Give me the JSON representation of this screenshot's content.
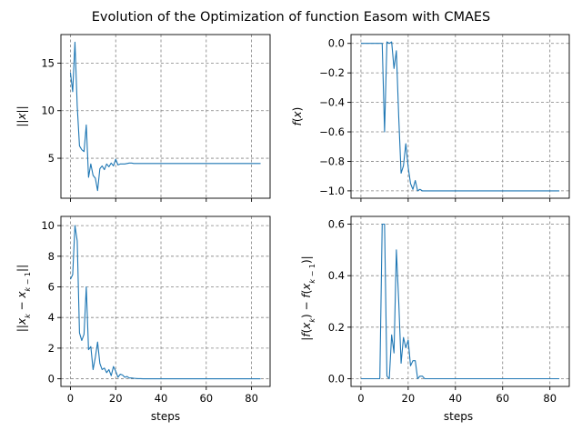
{
  "figure": {
    "title": "Evolution of the Optimization of function Easom with CMAES"
  },
  "colors": {
    "line": "#1f77b4",
    "grid": "#808080",
    "axis": "#000000"
  },
  "chart_data": [
    {
      "type": "line",
      "ylabel": "||x||",
      "xlabel": "",
      "xlim": [
        -4.2,
        88.2
      ],
      "ylim": [
        0.8,
        18.0
      ],
      "xticks": [
        0,
        20,
        40,
        60,
        80
      ],
      "yticks": [
        5,
        10,
        15
      ],
      "grid": true,
      "x_tick_labels_shown": false,
      "x": [
        0,
        1,
        2,
        3,
        4,
        5,
        6,
        7,
        8,
        9,
        10,
        11,
        12,
        13,
        14,
        15,
        16,
        17,
        18,
        19,
        20,
        21,
        22,
        23,
        24,
        25,
        26,
        27,
        28,
        29,
        30,
        31,
        32,
        33,
        34,
        35,
        36,
        37,
        38,
        39,
        40,
        41,
        42,
        43,
        44,
        45,
        46,
        47,
        48,
        49,
        50,
        51,
        52,
        53,
        54,
        55,
        56,
        57,
        58,
        59,
        60,
        61,
        62,
        63,
        64,
        65,
        66,
        67,
        68,
        69,
        70,
        71,
        72,
        73,
        74,
        75,
        76,
        77,
        78,
        79,
        80,
        81,
        82,
        83,
        84
      ],
      "values": [
        14.0,
        12.0,
        17.2,
        10.5,
        6.3,
        5.9,
        5.7,
        8.5,
        3.0,
        4.4,
        3.2,
        2.9,
        1.6,
        3.9,
        4.2,
        3.8,
        4.4,
        4.1,
        4.5,
        4.2,
        4.9,
        4.3,
        4.4,
        4.4,
        4.4,
        4.45,
        4.5,
        4.5,
        4.45,
        4.45,
        4.45,
        4.45,
        4.45,
        4.45,
        4.45,
        4.45,
        4.45,
        4.45,
        4.45,
        4.45,
        4.45,
        4.45,
        4.45,
        4.45,
        4.45,
        4.45,
        4.45,
        4.45,
        4.45,
        4.45,
        4.45,
        4.45,
        4.45,
        4.45,
        4.45,
        4.45,
        4.45,
        4.45,
        4.45,
        4.45,
        4.45,
        4.45,
        4.45,
        4.45,
        4.45,
        4.45,
        4.45,
        4.45,
        4.45,
        4.45,
        4.45,
        4.45,
        4.45,
        4.45,
        4.45,
        4.45,
        4.45,
        4.45,
        4.45,
        4.45,
        4.45,
        4.45,
        4.45,
        4.45,
        4.45
      ]
    },
    {
      "type": "line",
      "ylabel": "f(x)",
      "xlabel": "",
      "xlim": [
        -4.2,
        88.2
      ],
      "ylim": [
        -1.05,
        0.06
      ],
      "xticks": [
        0,
        20,
        40,
        60,
        80
      ],
      "yticks": [
        0.0,
        -0.2,
        -0.4,
        -0.6,
        -0.8,
        -1.0
      ],
      "ytick_labels": [
        "0.0",
        "−0.2",
        "−0.4",
        "−0.6",
        "−0.8",
        "−1.0"
      ],
      "grid": true,
      "x_tick_labels_shown": false,
      "x": [
        0,
        1,
        2,
        3,
        4,
        5,
        6,
        7,
        8,
        9,
        10,
        11,
        12,
        13,
        14,
        15,
        16,
        17,
        18,
        19,
        20,
        21,
        22,
        23,
        24,
        25,
        26,
        27,
        28,
        29,
        30,
        31,
        32,
        33,
        34,
        35,
        36,
        37,
        38,
        39,
        40,
        41,
        42,
        43,
        44,
        45,
        46,
        47,
        48,
        49,
        50,
        51,
        52,
        53,
        54,
        55,
        56,
        57,
        58,
        59,
        60,
        61,
        62,
        63,
        64,
        65,
        66,
        67,
        68,
        69,
        70,
        71,
        72,
        73,
        74,
        75,
        76,
        77,
        78,
        79,
        80,
        81,
        82,
        83,
        84
      ],
      "values": [
        0.0,
        0.0,
        0.0,
        0.0,
        0.0,
        0.0,
        0.0,
        0.0,
        0.0,
        0.0,
        -0.6,
        0.01,
        0.0,
        0.01,
        -0.17,
        -0.05,
        -0.5,
        -0.88,
        -0.83,
        -0.68,
        -0.84,
        -0.95,
        -0.99,
        -0.93,
        -1.0,
        -0.99,
        -1.0,
        -1.0,
        -1.0,
        -1.0,
        -1.0,
        -1.0,
        -1.0,
        -1.0,
        -1.0,
        -1.0,
        -1.0,
        -1.0,
        -1.0,
        -1.0,
        -1.0,
        -1.0,
        -1.0,
        -1.0,
        -1.0,
        -1.0,
        -1.0,
        -1.0,
        -1.0,
        -1.0,
        -1.0,
        -1.0,
        -1.0,
        -1.0,
        -1.0,
        -1.0,
        -1.0,
        -1.0,
        -1.0,
        -1.0,
        -1.0,
        -1.0,
        -1.0,
        -1.0,
        -1.0,
        -1.0,
        -1.0,
        -1.0,
        -1.0,
        -1.0,
        -1.0,
        -1.0,
        -1.0,
        -1.0,
        -1.0,
        -1.0,
        -1.0,
        -1.0,
        -1.0,
        -1.0,
        -1.0,
        -1.0,
        -1.0,
        -1.0,
        -1.0
      ]
    },
    {
      "type": "line",
      "ylabel": "||x_k − x_{k−1}||",
      "xlabel": "steps",
      "xlim": [
        -4.2,
        88.2
      ],
      "ylim": [
        -0.5,
        10.6
      ],
      "xticks": [
        0,
        20,
        40,
        60,
        80
      ],
      "yticks": [
        0,
        2,
        4,
        6,
        8,
        10
      ],
      "grid": true,
      "x_tick_labels_shown": true,
      "x": [
        0,
        1,
        2,
        3,
        4,
        5,
        6,
        7,
        8,
        9,
        10,
        11,
        12,
        13,
        14,
        15,
        16,
        17,
        18,
        19,
        20,
        21,
        22,
        23,
        24,
        25,
        26,
        27,
        28,
        29,
        30,
        31,
        32,
        33,
        34,
        35,
        36,
        37,
        38,
        39,
        40,
        41,
        42,
        43,
        44,
        45,
        46,
        47,
        48,
        49,
        50,
        51,
        52,
        53,
        54,
        55,
        56,
        57,
        58,
        59,
        60,
        61,
        62,
        63,
        64,
        65,
        66,
        67,
        68,
        69,
        70,
        71,
        72,
        73,
        74,
        75,
        76,
        77,
        78,
        79,
        80,
        81,
        82,
        83,
        84
      ],
      "values": [
        6.5,
        6.8,
        10.0,
        9.0,
        3.0,
        2.5,
        2.9,
        6.0,
        1.9,
        2.1,
        0.6,
        1.4,
        2.4,
        1.0,
        0.6,
        0.7,
        0.4,
        0.6,
        0.2,
        0.8,
        0.5,
        0.1,
        0.3,
        0.25,
        0.1,
        0.15,
        0.05,
        0.05,
        0.03,
        0.02,
        0.01,
        0.01,
        0.0,
        0.0,
        0.0,
        0.0,
        0.0,
        0.0,
        0.0,
        0.0,
        0.0,
        0.0,
        0.0,
        0.0,
        0.0,
        0.0,
        0.0,
        0.0,
        0.0,
        0.0,
        0.0,
        0.0,
        0.0,
        0.0,
        0.0,
        0.0,
        0.0,
        0.0,
        0.0,
        0.0,
        0.0,
        0.0,
        0.0,
        0.0,
        0.0,
        0.0,
        0.0,
        0.0,
        0.0,
        0.0,
        0.0,
        0.0,
        0.0,
        0.0,
        0.0,
        0.0,
        0.0,
        0.0,
        0.0,
        0.0,
        0.0,
        0.0,
        0.0,
        0.0,
        0.0
      ]
    },
    {
      "type": "line",
      "ylabel": "|f(x_k) − f(x_{k−1})|",
      "xlabel": "steps",
      "xlim": [
        -4.2,
        88.2
      ],
      "ylim": [
        -0.03,
        0.63
      ],
      "xticks": [
        0,
        20,
        40,
        60,
        80
      ],
      "yticks": [
        0.0,
        0.2,
        0.4,
        0.6
      ],
      "ytick_labels": [
        "0.0",
        "0.2",
        "0.4",
        "0.6"
      ],
      "grid": true,
      "x_tick_labels_shown": true,
      "x": [
        0,
        1,
        2,
        3,
        4,
        5,
        6,
        7,
        8,
        9,
        10,
        11,
        12,
        13,
        14,
        15,
        16,
        17,
        18,
        19,
        20,
        21,
        22,
        23,
        24,
        25,
        26,
        27,
        28,
        29,
        30,
        31,
        32,
        33,
        34,
        35,
        36,
        37,
        38,
        39,
        40,
        41,
        42,
        43,
        44,
        45,
        46,
        47,
        48,
        49,
        50,
        51,
        52,
        53,
        54,
        55,
        56,
        57,
        58,
        59,
        60,
        61,
        62,
        63,
        64,
        65,
        66,
        67,
        68,
        69,
        70,
        71,
        72,
        73,
        74,
        75,
        76,
        77,
        78,
        79,
        80,
        81,
        82,
        83,
        84
      ],
      "values": [
        0.0,
        0.0,
        0.0,
        0.0,
        0.0,
        0.0,
        0.0,
        0.0,
        0.0,
        0.6,
        0.6,
        0.01,
        0.0,
        0.17,
        0.1,
        0.5,
        0.3,
        0.06,
        0.16,
        0.12,
        0.15,
        0.05,
        0.07,
        0.07,
        0.0,
        0.01,
        0.01,
        0.0,
        0.0,
        0.0,
        0.0,
        0.0,
        0.0,
        0.0,
        0.0,
        0.0,
        0.0,
        0.0,
        0.0,
        0.0,
        0.0,
        0.0,
        0.0,
        0.0,
        0.0,
        0.0,
        0.0,
        0.0,
        0.0,
        0.0,
        0.0,
        0.0,
        0.0,
        0.0,
        0.0,
        0.0,
        0.0,
        0.0,
        0.0,
        0.0,
        0.0,
        0.0,
        0.0,
        0.0,
        0.0,
        0.0,
        0.0,
        0.0,
        0.0,
        0.0,
        0.0,
        0.0,
        0.0,
        0.0,
        0.0,
        0.0,
        0.0,
        0.0,
        0.0,
        0.0,
        0.0,
        0.0,
        0.0,
        0.0,
        0.0
      ]
    }
  ]
}
